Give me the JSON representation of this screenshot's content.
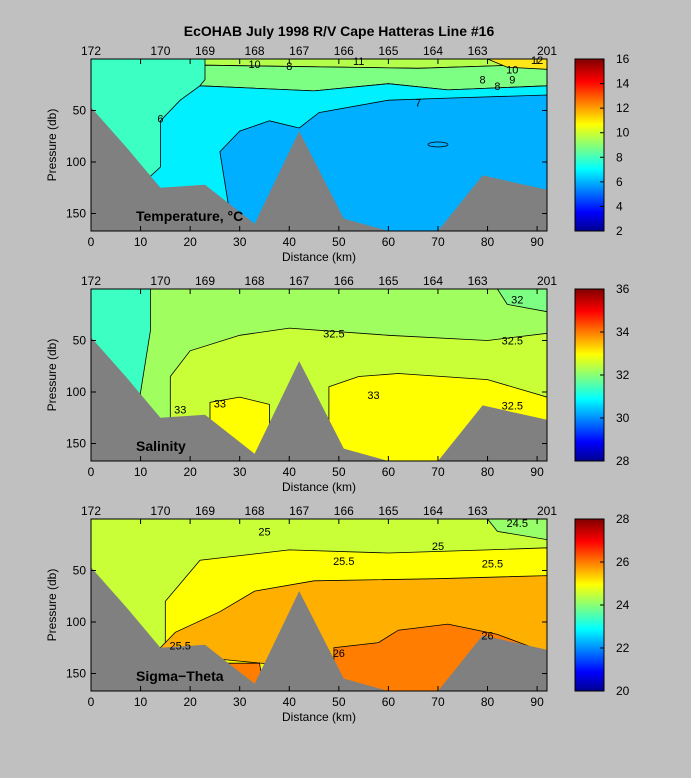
{
  "title": "EcOHAB   July 1998   R/V Cape Hatteras   Line #16",
  "chart_data": [
    {
      "type": "heatmap",
      "label": "Temperature, °C",
      "xlabel": "Distance (km)",
      "ylabel": "Pressure (db)",
      "xlim": [
        0,
        92
      ],
      "ylim": [
        0,
        167
      ],
      "xticks": [
        "0",
        "10",
        "20",
        "30",
        "40",
        "50",
        "60",
        "70",
        "80",
        "90"
      ],
      "yticks": [
        "50",
        "100",
        "150"
      ],
      "stations": [
        [
          "172",
          0
        ],
        [
          "170",
          14
        ],
        [
          "169",
          23
        ],
        [
          "168",
          33
        ],
        [
          "167",
          42
        ],
        [
          "166",
          51
        ],
        [
          "165",
          60
        ],
        [
          "164",
          69
        ],
        [
          "163",
          78
        ],
        [
          "201",
          92
        ]
      ],
      "colorbar": {
        "min": 2,
        "max": 16,
        "ticks": [
          "2",
          "4",
          "6",
          "8",
          "10",
          "12",
          "14",
          "16"
        ]
      },
      "contour_labels": [
        "10",
        "8",
        "11",
        "10",
        "9",
        "8",
        "8",
        "7",
        "6",
        "12"
      ],
      "bottom_profile": [
        [
          0,
          47
        ],
        [
          7,
          85
        ],
        [
          14,
          125
        ],
        [
          23,
          122
        ],
        [
          33,
          160
        ],
        [
          42,
          70
        ],
        [
          51,
          155
        ],
        [
          60,
          167
        ],
        [
          70,
          167
        ],
        [
          79,
          113
        ],
        [
          92,
          127
        ]
      ],
      "regions": [
        {
          "value": 7.8,
          "color": "#3cffc3",
          "poly": [
            [
              0,
              0
            ],
            [
              92,
              0
            ],
            [
              92,
              167
            ],
            [
              0,
              167
            ]
          ]
        },
        {
          "value": 10.5,
          "color": "#b4ff4b",
          "poly": [
            [
              23,
              0
            ],
            [
              92,
              0
            ],
            [
              92,
              5
            ],
            [
              66,
              9
            ],
            [
              23,
              6
            ]
          ]
        },
        {
          "value": 9.2,
          "color": "#7cff83",
          "poly": [
            [
              23,
              6
            ],
            [
              66,
              9
            ],
            [
              92,
              5
            ],
            [
              92,
              26
            ],
            [
              72,
              30
            ],
            [
              60,
              24
            ],
            [
              45,
              31
            ],
            [
              22,
              26
            ],
            [
              23,
              20
            ]
          ]
        },
        {
          "value": 11.8,
          "color": "#ffe619",
          "poly": [
            [
              80,
              0
            ],
            [
              92,
              0
            ],
            [
              92,
              10
            ],
            [
              84,
              8
            ]
          ]
        },
        {
          "value": 7.0,
          "color": "#00f0ff",
          "poly": [
            [
              22,
              26
            ],
            [
              45,
              31
            ],
            [
              60,
              24
            ],
            [
              72,
              30
            ],
            [
              92,
              26
            ],
            [
              92,
              167
            ],
            [
              0,
              167
            ],
            [
              14,
              105
            ],
            [
              14,
              60
            ],
            [
              18,
              40
            ]
          ]
        },
        {
          "value": 6.3,
          "color": "#00afff",
          "poly": [
            [
              27,
              120
            ],
            [
              26,
              90
            ],
            [
              30,
              70
            ],
            [
              36,
              60
            ],
            [
              42,
              67
            ],
            [
              46,
              52
            ],
            [
              60,
              40
            ],
            [
              72,
              38
            ],
            [
              92,
              35
            ],
            [
              92,
              167
            ],
            [
              30,
              167
            ],
            [
              28,
              150
            ]
          ]
        }
      ]
    },
    {
      "type": "heatmap",
      "label": "Salinity",
      "xlabel": "Distance (km)",
      "ylabel": "Pressure (db)",
      "xlim": [
        0,
        92
      ],
      "ylim": [
        0,
        167
      ],
      "xticks": [
        "0",
        "10",
        "20",
        "30",
        "40",
        "50",
        "60",
        "70",
        "80",
        "90"
      ],
      "yticks": [
        "50",
        "100",
        "150"
      ],
      "stations": [
        [
          "172",
          0
        ],
        [
          "170",
          14
        ],
        [
          "169",
          23
        ],
        [
          "168",
          33
        ],
        [
          "167",
          42
        ],
        [
          "166",
          51
        ],
        [
          "165",
          60
        ],
        [
          "164",
          69
        ],
        [
          "163",
          78
        ],
        [
          "201",
          92
        ]
      ],
      "colorbar": {
        "min": 28,
        "max": 36,
        "ticks": [
          "28",
          "30",
          "32",
          "34",
          "36"
        ]
      },
      "contour_labels": [
        "32",
        "32.5",
        "32.5",
        "33",
        "33",
        "33",
        "32.5"
      ],
      "bottom_profile": [
        [
          0,
          47
        ],
        [
          7,
          85
        ],
        [
          14,
          125
        ],
        [
          23,
          122
        ],
        [
          33,
          160
        ],
        [
          42,
          70
        ],
        [
          51,
          155
        ],
        [
          60,
          167
        ],
        [
          70,
          167
        ],
        [
          79,
          113
        ],
        [
          92,
          127
        ]
      ],
      "regions": [
        {
          "value": 31.6,
          "color": "#3cffc3",
          "poly": [
            [
              0,
              0
            ],
            [
              92,
              0
            ],
            [
              92,
              167
            ],
            [
              0,
              167
            ]
          ]
        },
        {
          "value": 32.2,
          "color": "#a0ff5f",
          "poly": [
            [
              12,
              0
            ],
            [
              92,
              0
            ],
            [
              92,
              167
            ],
            [
              10,
              167
            ],
            [
              10,
              100
            ],
            [
              12,
              40
            ]
          ]
        },
        {
          "value": 31.9,
          "color": "#7cff83",
          "poly": [
            [
              82,
              0
            ],
            [
              92,
              0
            ],
            [
              92,
              22
            ],
            [
              84,
              15
            ]
          ]
        },
        {
          "value": 32.7,
          "color": "#c8ff37",
          "poly": [
            [
              16,
              167
            ],
            [
              16,
              85
            ],
            [
              20,
              60
            ],
            [
              30,
              45
            ],
            [
              40,
              38
            ],
            [
              60,
              45
            ],
            [
              80,
              50
            ],
            [
              92,
              43
            ],
            [
              92,
              167
            ]
          ]
        },
        {
          "value": 33.1,
          "color": "#ffff00",
          "poly": [
            [
              24,
              160
            ],
            [
              24,
              110
            ],
            [
              30,
              105
            ],
            [
              36,
              112
            ],
            [
              36,
              165
            ]
          ]
        },
        {
          "value": 33.1,
          "color": "#ffff00",
          "poly": [
            [
              48,
              167
            ],
            [
              48,
              95
            ],
            [
              54,
              85
            ],
            [
              62,
              82
            ],
            [
              80,
              88
            ],
            [
              92,
              105
            ],
            [
              92,
              167
            ]
          ]
        }
      ]
    },
    {
      "type": "heatmap",
      "label": "Sigma−Theta",
      "xlabel": "Distance (km)",
      "ylabel": "Pressure (db)",
      "xlim": [
        0,
        92
      ],
      "ylim": [
        0,
        167
      ],
      "xticks": [
        "0",
        "10",
        "20",
        "30",
        "40",
        "50",
        "60",
        "70",
        "80",
        "90"
      ],
      "yticks": [
        "50",
        "100",
        "150"
      ],
      "stations": [
        [
          "172",
          0
        ],
        [
          "170",
          14
        ],
        [
          "169",
          23
        ],
        [
          "168",
          33
        ],
        [
          "167",
          42
        ],
        [
          "166",
          51
        ],
        [
          "165",
          60
        ],
        [
          "164",
          69
        ],
        [
          "163",
          78
        ],
        [
          "201",
          92
        ]
      ],
      "colorbar": {
        "min": 20,
        "max": 28,
        "ticks": [
          "20",
          "22",
          "24",
          "26",
          "28"
        ]
      },
      "contour_labels": [
        "24.5",
        "25",
        "25",
        "25.5",
        "25.5",
        "25.5",
        "26",
        "26"
      ],
      "bottom_profile": [
        [
          0,
          47
        ],
        [
          7,
          85
        ],
        [
          14,
          125
        ],
        [
          23,
          122
        ],
        [
          33,
          160
        ],
        [
          42,
          70
        ],
        [
          51,
          155
        ],
        [
          60,
          167
        ],
        [
          70,
          167
        ],
        [
          79,
          113
        ],
        [
          92,
          127
        ]
      ],
      "regions": [
        {
          "value": 24.7,
          "color": "#c8ff37",
          "poly": [
            [
              0,
              0
            ],
            [
              92,
              0
            ],
            [
              92,
              167
            ],
            [
              0,
              167
            ]
          ]
        },
        {
          "value": 24.2,
          "color": "#96ff69",
          "poly": [
            [
              80,
              0
            ],
            [
              92,
              0
            ],
            [
              92,
              20
            ],
            [
              82,
              12
            ]
          ]
        },
        {
          "value": 25.2,
          "color": "#ffff00",
          "poly": [
            [
              15,
              167
            ],
            [
              15,
              80
            ],
            [
              22,
              40
            ],
            [
              40,
              30
            ],
            [
              60,
              33
            ],
            [
              80,
              30
            ],
            [
              92,
              28
            ],
            [
              92,
              167
            ]
          ]
        },
        {
          "value": 25.7,
          "color": "#ffaf00",
          "poly": [
            [
              13,
              130
            ],
            [
              17,
              110
            ],
            [
              26,
              90
            ],
            [
              33,
              70
            ],
            [
              45,
              60
            ],
            [
              70,
              58
            ],
            [
              92,
              55
            ],
            [
              92,
              167
            ]
          ]
        },
        {
          "value": 26.1,
          "color": "#ff7d00",
          "poly": [
            [
              24,
              140
            ],
            [
              34,
              140
            ],
            [
              35,
              167
            ],
            [
              24,
              167
            ]
          ]
        },
        {
          "value": 26.1,
          "color": "#ff7d00",
          "poly": [
            [
              49,
              167
            ],
            [
              49,
              125
            ],
            [
              58,
              120
            ],
            [
              62,
              108
            ],
            [
              72,
              102
            ],
            [
              82,
              112
            ],
            [
              92,
              130
            ],
            [
              92,
              167
            ]
          ]
        }
      ]
    }
  ]
}
